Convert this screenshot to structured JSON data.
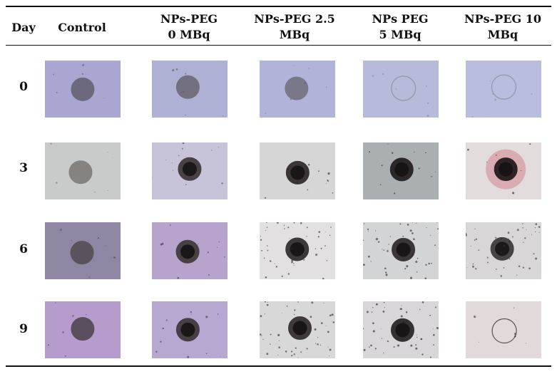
{
  "table": {
    "columns": [
      {
        "lines": [
          "Day"
        ]
      },
      {
        "lines": [
          "Control"
        ]
      },
      {
        "lines": [
          "NPs-PEG",
          "0 MBq"
        ]
      },
      {
        "lines": [
          "NPs-PEG 2.5",
          "MBq"
        ]
      },
      {
        "lines": [
          "NPs PEG",
          "5 MBq"
        ]
      },
      {
        "lines": [
          "NPs-PEG 10",
          "MBq"
        ]
      }
    ],
    "days": [
      "0",
      "3",
      "6",
      "9"
    ],
    "images": [
      [
        {
          "bg": "#a9a7d2",
          "core": "#5a5560",
          "style": "spheroid"
        },
        {
          "bg": "#aeb0d4",
          "core": "#5e5a62",
          "style": "spheroid"
        },
        {
          "bg": "#b1b4d8",
          "core": "#66646e",
          "style": "spheroid"
        },
        {
          "bg": "#b8bad9",
          "core": "#8a8a92",
          "style": "faint"
        },
        {
          "bg": "#b9bdde",
          "core": "#8c8c94",
          "style": "faint"
        }
      ],
      [
        {
          "bg": "#c9cbcb",
          "core": "#6e6b68",
          "style": "spheroid"
        },
        {
          "bg": "#c7c3d8",
          "core": "#3b3535",
          "style": "dark"
        },
        {
          "bg": "#d7d6d6",
          "core": "#2b2424",
          "style": "dark"
        },
        {
          "bg": "#aab0b2",
          "core": "#1f1a1c",
          "style": "dark"
        },
        {
          "bg": "#e3dcdc",
          "core": "#1d1416",
          "style": "red"
        }
      ],
      [
        {
          "bg": "#8e86a2",
          "core": "#4a4244",
          "style": "spheroid"
        },
        {
          "bg": "#b7a3cc",
          "core": "#3d3636",
          "style": "dark"
        },
        {
          "bg": "#e2e0e0",
          "core": "#2c2628",
          "style": "debris"
        },
        {
          "bg": "#d3d4d6",
          "core": "#2c2628",
          "style": "debris"
        },
        {
          "bg": "#d8d6d6",
          "core": "#3a3436",
          "style": "debris"
        }
      ],
      [
        {
          "bg": "#b69ccc",
          "core": "#3c3638",
          "style": "spheroid"
        },
        {
          "bg": "#b6a8d0",
          "core": "#3a3436",
          "style": "dark"
        },
        {
          "bg": "#d8d8d8",
          "core": "#2e282a",
          "style": "debris"
        },
        {
          "bg": "#d8d6d8",
          "core": "#242022",
          "style": "debris"
        },
        {
          "bg": "#e2dada",
          "core": "#3a3032",
          "style": "faint"
        }
      ]
    ]
  }
}
